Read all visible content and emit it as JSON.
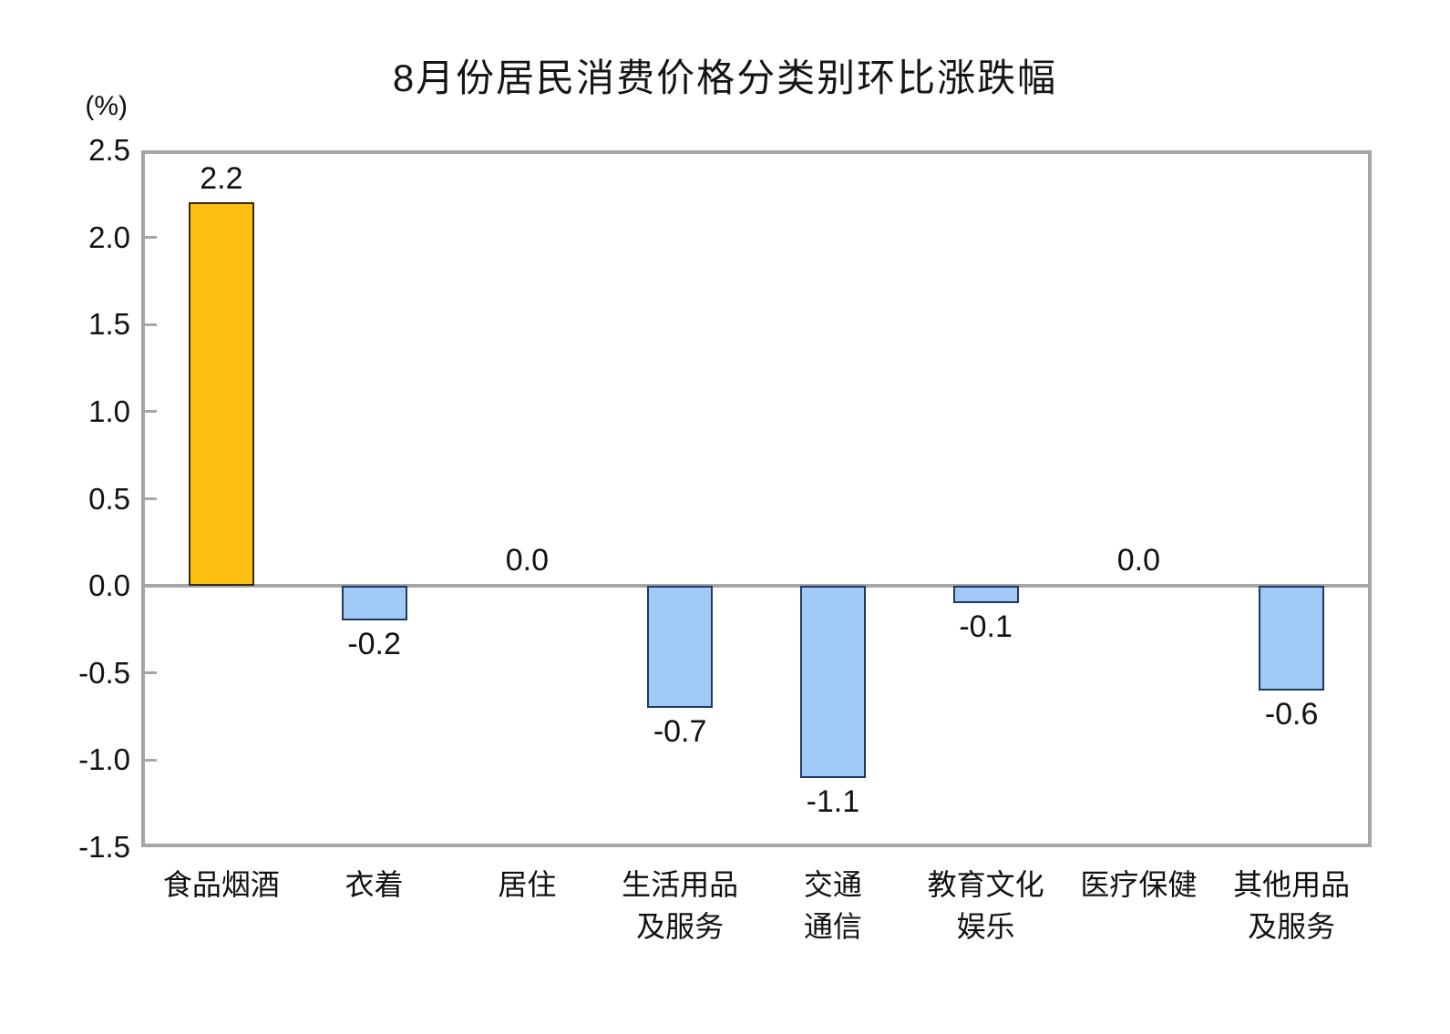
{
  "chart_data": {
    "type": "bar",
    "title": "8月份居民消费价格分类别环比涨跌幅",
    "unit_label": "(%)",
    "xlabel": "",
    "ylabel": "(%)",
    "categories": [
      "食品烟酒",
      "衣着",
      "居住",
      "生活用品\n及服务",
      "交通\n通信",
      "教育文化\n娱乐",
      "医疗保健",
      "其他用品\n及服务"
    ],
    "values": [
      2.2,
      -0.2,
      0.0,
      -0.7,
      -1.1,
      -0.1,
      0.0,
      -0.6
    ],
    "value_labels": [
      "2.2",
      "-0.2",
      "0.0",
      "-0.7",
      "-1.1",
      "-0.1",
      "0.0",
      "-0.6"
    ],
    "ylim": [
      -1.5,
      2.5
    ],
    "ytick_step": 0.5,
    "ytick_labels": [
      "2.5",
      "2.0",
      "1.5",
      "1.0",
      "0.5",
      "0.0",
      "-0.5",
      "-1.0",
      "-1.5"
    ],
    "grid": false,
    "legend": "none",
    "colors": {
      "positive_fill": "#FCBE10",
      "positive_border": "#33290F",
      "negative_fill": "#A0CAF5",
      "negative_border": "#1F3864",
      "axis": "#A6A6A6",
      "text": "#111111",
      "background": "#FFFFFF"
    }
  }
}
